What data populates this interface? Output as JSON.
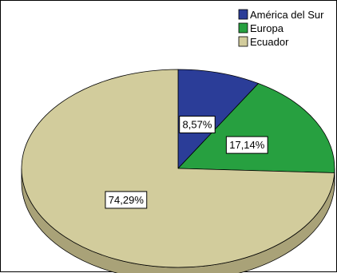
{
  "chart_data": {
    "type": "pie",
    "title": "",
    "categories": [
      "América del Sur",
      "Europa",
      "Ecuador"
    ],
    "values": [
      8.57,
      17.14,
      74.29
    ],
    "data_labels": [
      "8,57%",
      "17,14%",
      "74,29%"
    ],
    "colors": [
      "#2b3d98",
      "#27a040",
      "#d2cc9c"
    ],
    "shadow_colors": [
      "#1c2a6e",
      "#1b7530",
      "#a9a278"
    ],
    "legend_placement": "top-right",
    "three_d": true
  }
}
